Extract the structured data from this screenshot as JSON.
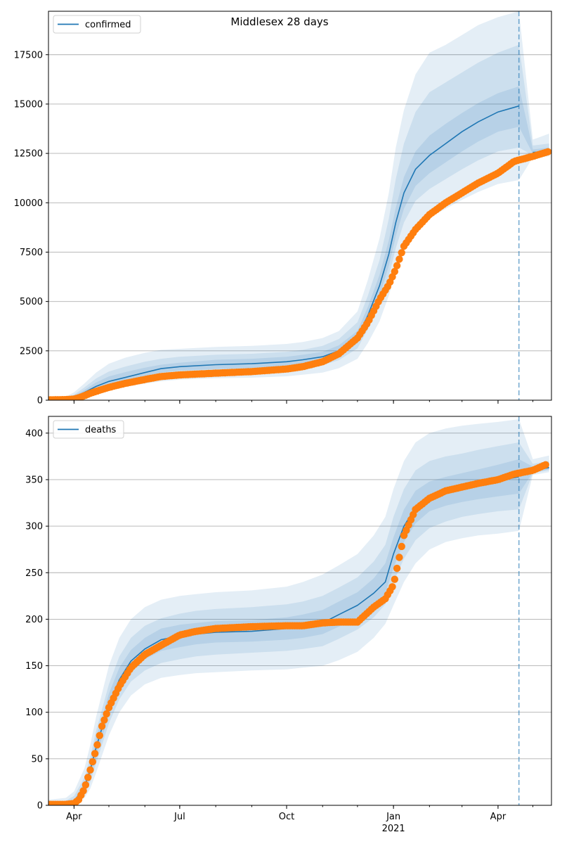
{
  "figure": {
    "title": "Middlesex 28 days"
  },
  "colors": {
    "model": "#1f77b4",
    "observed": "#ff7f0e",
    "band": "#1f77b4",
    "grid": "#b0b0b0",
    "forecast_line": "#1f77b4"
  },
  "chart_data": [
    {
      "type": "line",
      "legend": {
        "label": "confirmed",
        "placement": "top-left"
      },
      "x_ticks_major": [
        "Apr",
        "Jul",
        "Oct",
        "Jan",
        "Apr"
      ],
      "x_tick_year": "2021",
      "ylim": [
        0,
        19700
      ],
      "y_ticks": [
        "0",
        "2500",
        "5000",
        "7500",
        "10000",
        "12500",
        "15000",
        "17500"
      ],
      "grid": "horizontal",
      "forecast_start": "2021-04-19",
      "median_series": {
        "name": "confirmed",
        "x": [
          "2020-03-10",
          "2020-03-25",
          "2020-04-01",
          "2020-04-10",
          "2020-04-20",
          "2020-05-01",
          "2020-05-15",
          "2020-06-01",
          "2020-06-15",
          "2020-07-01",
          "2020-08-01",
          "2020-09-01",
          "2020-10-01",
          "2020-10-15",
          "2020-11-01",
          "2020-11-15",
          "2020-12-01",
          "2020-12-10",
          "2020-12-20",
          "2020-12-28",
          "2021-01-03",
          "2021-01-10",
          "2021-01-20",
          "2021-02-01",
          "2021-02-15",
          "2021-03-01",
          "2021-03-15",
          "2021-04-01",
          "2021-04-19",
          "2021-05-01",
          "2021-05-15"
        ],
        "values": [
          0,
          20,
          150,
          400,
          700,
          950,
          1150,
          1400,
          1600,
          1700,
          1800,
          1850,
          1950,
          2050,
          2200,
          2500,
          3200,
          4300,
          5800,
          7400,
          9000,
          10500,
          11700,
          12400,
          13000,
          13600,
          14100,
          14600,
          14900,
          12550,
          12600
        ]
      },
      "median_series_segments": [
        [
          0,
          28
        ],
        [
          29,
          30
        ]
      ],
      "bands": [
        {
          "level": "outer",
          "lower": [
            0,
            0,
            60,
            180,
            370,
            540,
            680,
            840,
            960,
            1040,
            1110,
            1140,
            1210,
            1290,
            1400,
            1620,
            2100,
            2900,
            4000,
            5300,
            6500,
            7700,
            8700,
            9250,
            9700,
            10150,
            10550,
            10950,
            11150,
            12300,
            12350
          ],
          "upper": [
            150,
            180,
            400,
            850,
            1400,
            1850,
            2150,
            2400,
            2550,
            2600,
            2700,
            2750,
            2850,
            2950,
            3150,
            3500,
            4500,
            6100,
            8200,
            10500,
            12800,
            14700,
            16500,
            17600,
            18000,
            18500,
            19000,
            19400,
            19700,
            13200,
            13500
          ]
        },
        {
          "level": "middle",
          "lower": [
            0,
            5,
            90,
            260,
            500,
            700,
            870,
            1070,
            1230,
            1320,
            1410,
            1450,
            1540,
            1630,
            1770,
            2030,
            2630,
            3600,
            4900,
            6300,
            7700,
            9000,
            10100,
            10700,
            11200,
            11700,
            12150,
            12600,
            12800,
            12400,
            12450
          ],
          "upper": [
            80,
            110,
            280,
            650,
            1100,
            1450,
            1700,
            1950,
            2100,
            2200,
            2300,
            2350,
            2450,
            2550,
            2750,
            3100,
            3950,
            5300,
            7100,
            9200,
            11200,
            13000,
            14600,
            15600,
            16100,
            16600,
            17100,
            17600,
            18000,
            12900,
            13000
          ]
        },
        {
          "level": "inner",
          "lower": [
            0,
            10,
            110,
            320,
            580,
            800,
            990,
            1220,
            1400,
            1500,
            1580,
            1630,
            1720,
            1820,
            1970,
            2260,
            2900,
            3930,
            5300,
            6800,
            8300,
            9700,
            10850,
            11500,
            12050,
            12600,
            13100,
            13600,
            13850,
            12480,
            12520
          ],
          "upper": [
            40,
            50,
            210,
            520,
            900,
            1200,
            1420,
            1650,
            1800,
            1900,
            2050,
            2100,
            2200,
            2300,
            2450,
            2780,
            3520,
            4730,
            6350,
            8100,
            9750,
            11300,
            12600,
            13400,
            14000,
            14550,
            15050,
            15550,
            15900,
            12700,
            12800
          ]
        }
      ],
      "observed_series": {
        "x": [
          "2020-03-10",
          "2020-03-25",
          "2020-04-01",
          "2020-04-05",
          "2020-04-10",
          "2020-04-15",
          "2020-04-20",
          "2020-05-01",
          "2020-05-15",
          "2020-06-01",
          "2020-06-15",
          "2020-07-01",
          "2020-08-01",
          "2020-09-01",
          "2020-10-01",
          "2020-10-15",
          "2020-11-01",
          "2020-11-15",
          "2020-12-01",
          "2020-12-10",
          "2020-12-20",
          "2020-12-28",
          "2021-01-03",
          "2021-01-10",
          "2021-01-20",
          "2021-02-01",
          "2021-02-15",
          "2021-03-01",
          "2021-03-15",
          "2021-04-01",
          "2021-04-15",
          "2021-05-01",
          "2021-05-15"
        ],
        "values": [
          20,
          30,
          60,
          120,
          230,
          350,
          450,
          650,
          850,
          1050,
          1200,
          1280,
          1370,
          1450,
          1580,
          1700,
          1950,
          2350,
          3150,
          3950,
          5100,
          5850,
          6650,
          7800,
          8650,
          9400,
          10000,
          10500,
          11000,
          11500,
          12100,
          12350,
          12600
        ]
      }
    },
    {
      "type": "line",
      "legend": {
        "label": "deaths",
        "placement": "top-left"
      },
      "x_ticks_major": [
        "Apr",
        "Jul",
        "Oct",
        "Jan",
        "Apr"
      ],
      "x_tick_year": "2021",
      "ylim": [
        0,
        418
      ],
      "y_ticks": [
        "0",
        "50",
        "100",
        "150",
        "200",
        "250",
        "300",
        "350",
        "400"
      ],
      "grid": "horizontal",
      "forecast_start": "2021-04-19",
      "median_series": {
        "name": "deaths",
        "x": [
          "2020-03-10",
          "2020-03-25",
          "2020-04-01",
          "2020-04-10",
          "2020-04-15",
          "2020-04-20",
          "2020-05-01",
          "2020-05-10",
          "2020-05-20",
          "2020-06-01",
          "2020-06-15",
          "2020-07-01",
          "2020-07-15",
          "2020-08-01",
          "2020-09-01",
          "2020-10-01",
          "2020-10-15",
          "2020-11-01",
          "2020-11-15",
          "2020-12-01",
          "2020-12-15",
          "2020-12-25",
          "2021-01-01",
          "2021-01-10",
          "2021-01-20",
          "2021-02-01",
          "2021-02-15",
          "2021-03-01",
          "2021-03-15",
          "2021-04-01",
          "2021-04-19",
          "2021-05-01",
          "2021-05-15"
        ],
        "values": [
          0,
          1,
          4,
          20,
          38,
          62,
          108,
          135,
          155,
          168,
          178,
          182,
          184,
          186,
          187,
          190,
          192,
          196,
          205,
          215,
          228,
          240,
          270,
          300,
          320,
          332,
          338,
          342,
          345,
          349,
          353,
          360,
          363
        ]
      },
      "median_series_segments": [
        [
          0,
          30
        ],
        [
          31,
          32
        ]
      ],
      "bands": [
        {
          "level": "outer",
          "lower": [
            0,
            0,
            1,
            8,
            18,
            35,
            75,
            100,
            118,
            130,
            137,
            140,
            142,
            143,
            145,
            146,
            148,
            150,
            156,
            165,
            180,
            195,
            215,
            240,
            260,
            275,
            283,
            287,
            290,
            292,
            295,
            355,
            358
          ],
          "upper": [
            6,
            8,
            15,
            40,
            65,
            95,
            150,
            180,
            200,
            213,
            221,
            225,
            227,
            229,
            231,
            235,
            240,
            248,
            258,
            270,
            290,
            310,
            340,
            370,
            390,
            400,
            405,
            408,
            410,
            412,
            415,
            372,
            376
          ]
        },
        {
          "level": "middle",
          "lower": [
            0,
            0,
            2,
            12,
            25,
            45,
            88,
            114,
            133,
            145,
            153,
            157,
            160,
            162,
            164,
            166,
            168,
            171,
            179,
            189,
            202,
            216,
            240,
            265,
            285,
            298,
            305,
            310,
            313,
            316,
            318,
            357,
            360
          ],
          "upper": [
            3,
            5,
            10,
            30,
            52,
            80,
            130,
            160,
            180,
            193,
            201,
            206,
            209,
            211,
            213,
            216,
            219,
            225,
            234,
            245,
            262,
            280,
            310,
            340,
            360,
            370,
            375,
            378,
            382,
            386,
            390,
            367,
            370
          ]
        },
        {
          "level": "inner",
          "lower": [
            0,
            0,
            3,
            15,
            30,
            52,
            97,
            124,
            144,
            157,
            166,
            170,
            173,
            175,
            176,
            178,
            180,
            184,
            192,
            202,
            215,
            228,
            255,
            283,
            303,
            316,
            322,
            326,
            329,
            332,
            335,
            358,
            361
          ],
          "upper": [
            1,
            2,
            6,
            25,
            45,
            72,
            120,
            148,
            167,
            180,
            190,
            194,
            196,
            198,
            199,
            202,
            205,
            210,
            219,
            229,
            244,
            260,
            288,
            318,
            338,
            348,
            353,
            357,
            361,
            366,
            372,
            364,
            367
          ]
        }
      ],
      "observed_series": {
        "x": [
          "2020-03-10",
          "2020-03-25",
          "2020-04-01",
          "2020-04-05",
          "2020-04-10",
          "2020-04-15",
          "2020-04-20",
          "2020-04-25",
          "2020-05-01",
          "2020-05-10",
          "2020-05-20",
          "2020-06-01",
          "2020-06-15",
          "2020-07-01",
          "2020-07-15",
          "2020-08-01",
          "2020-09-01",
          "2020-10-01",
          "2020-10-15",
          "2020-11-01",
          "2020-11-15",
          "2020-12-01",
          "2020-12-15",
          "2020-12-25",
          "2021-01-01",
          "2021-01-10",
          "2021-01-20",
          "2021-02-01",
          "2021-02-15",
          "2021-03-01",
          "2021-03-15",
          "2021-04-01",
          "2021-04-15",
          "2021-05-01",
          "2021-05-12"
        ],
        "values": [
          1,
          1,
          2,
          6,
          18,
          38,
          60,
          85,
          105,
          128,
          148,
          162,
          172,
          183,
          187,
          190,
          192,
          193,
          193,
          196,
          197,
          197,
          213,
          222,
          237,
          290,
          318,
          330,
          338,
          342,
          346,
          350,
          356,
          360,
          366
        ]
      }
    }
  ]
}
